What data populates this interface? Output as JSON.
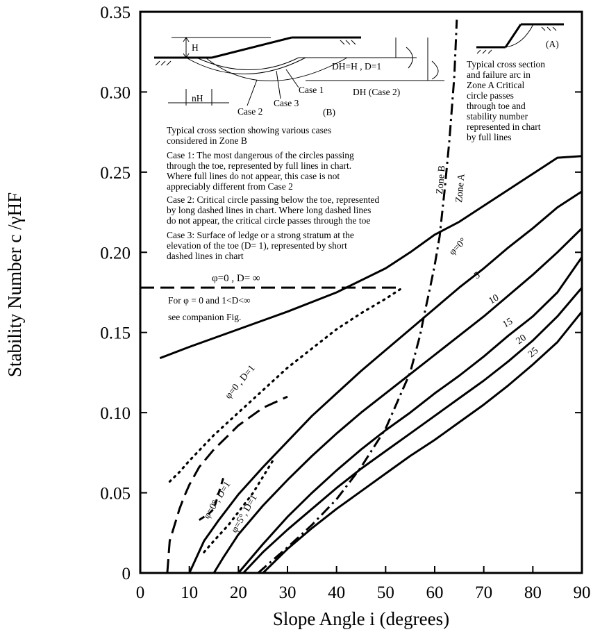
{
  "chart_data": {
    "type": "line",
    "title": "",
    "xlabel": "Slope Angle i (degrees)",
    "ylabel": "Stability Number c /γHF",
    "xlim": [
      0,
      90
    ],
    "ylim": [
      0,
      0.35
    ],
    "x_ticks": [
      "0",
      "10",
      "20",
      "30",
      "40",
      "50",
      "60",
      "70",
      "80",
      "90"
    ],
    "y_ticks": [
      "0",
      "0.05",
      "0.10",
      "0.15",
      "0.20",
      "0.25",
      "0.30",
      "0.35"
    ],
    "grid": false,
    "series": [
      {
        "name": "φ=0°",
        "style": "solid",
        "x": [
          4,
          10,
          20,
          30,
          40,
          50,
          55,
          60,
          65,
          70,
          75,
          80,
          85,
          90
        ],
        "y": [
          0.134,
          0.141,
          0.152,
          0.163,
          0.175,
          0.19,
          0.2,
          0.211,
          0.219,
          0.229,
          0.239,
          0.249,
          0.259,
          0.26
        ]
      },
      {
        "name": "5",
        "style": "solid",
        "x": [
          10,
          13,
          16,
          20,
          25,
          30,
          35,
          40,
          45,
          50,
          55,
          60,
          65,
          70,
          75,
          80,
          85,
          90
        ],
        "y": [
          0,
          0.02,
          0.033,
          0.049,
          0.066,
          0.082,
          0.098,
          0.112,
          0.126,
          0.139,
          0.152,
          0.165,
          0.178,
          0.19,
          0.203,
          0.215,
          0.228,
          0.238
        ]
      },
      {
        "name": "10",
        "style": "solid",
        "x": [
          15,
          17,
          20,
          25,
          30,
          35,
          40,
          45,
          50,
          55,
          60,
          65,
          70,
          75,
          80,
          85,
          90
        ],
        "y": [
          0,
          0.01,
          0.024,
          0.042,
          0.058,
          0.073,
          0.087,
          0.1,
          0.112,
          0.124,
          0.136,
          0.148,
          0.16,
          0.173,
          0.186,
          0.2,
          0.215
        ]
      },
      {
        "name": "15",
        "style": "solid",
        "x": [
          20,
          25,
          30,
          35,
          40,
          45,
          50,
          55,
          60,
          65,
          70,
          75,
          80,
          85,
          90
        ],
        "y": [
          0,
          0.018,
          0.035,
          0.05,
          0.064,
          0.077,
          0.089,
          0.1,
          0.112,
          0.123,
          0.135,
          0.148,
          0.16,
          0.175,
          0.197
        ]
      },
      {
        "name": "20",
        "style": "solid",
        "x": [
          21,
          25,
          30,
          35,
          40,
          45,
          50,
          55,
          60,
          65,
          70,
          75,
          80,
          85,
          90
        ],
        "y": [
          0,
          0.013,
          0.027,
          0.04,
          0.053,
          0.065,
          0.076,
          0.087,
          0.098,
          0.109,
          0.12,
          0.132,
          0.145,
          0.16,
          0.178
        ]
      },
      {
        "name": "25",
        "style": "solid",
        "x": [
          25,
          30,
          35,
          40,
          45,
          50,
          55,
          60,
          65,
          70,
          75,
          80,
          85,
          90
        ],
        "y": [
          0,
          0.015,
          0.028,
          0.04,
          0.051,
          0.062,
          0.073,
          0.083,
          0.094,
          0.105,
          0.117,
          0.13,
          0.144,
          0.163
        ]
      },
      {
        "name": "φ=0 , D=∞",
        "style": "long-dash",
        "x": [
          0,
          53
        ],
        "y": [
          0.178,
          0.178
        ]
      },
      {
        "name": "φ=0 , D=1",
        "style": "dotted",
        "x": [
          6,
          8,
          10,
          15,
          20,
          25,
          30,
          35,
          40,
          45,
          50,
          53
        ],
        "y": [
          0.057,
          0.063,
          0.07,
          0.086,
          0.1,
          0.114,
          0.128,
          0.14,
          0.152,
          0.162,
          0.171,
          0.177
        ]
      },
      {
        "name": "φ=0° , D=1 (short)",
        "style": "short-dash",
        "x": [
          12,
          14,
          15,
          17
        ],
        "y": [
          0.033,
          0.037,
          0.04,
          0.06
        ]
      },
      {
        "name": "φ=5° , D=1",
        "style": "dotted",
        "x": [
          13,
          15,
          18,
          20,
          23,
          27
        ],
        "y": [
          0.013,
          0.02,
          0.03,
          0.038,
          0.05,
          0.07
        ]
      },
      {
        "name": "Case 2 (φ=0°)",
        "style": "long-dash",
        "x": [
          5.5,
          6,
          7,
          8,
          9,
          10,
          12,
          15,
          18,
          20,
          25,
          30
        ],
        "y": [
          0,
          0.02,
          0.03,
          0.04,
          0.048,
          0.055,
          0.066,
          0.077,
          0.086,
          0.092,
          0.103,
          0.11
        ]
      },
      {
        "name": "Zone boundary",
        "style": "dash-dot",
        "x": [
          24,
          30,
          35,
          40,
          45,
          50,
          55,
          57,
          58,
          59,
          60,
          61,
          62,
          63,
          64,
          64.5
        ],
        "y": [
          0,
          0.016,
          0.03,
          0.046,
          0.066,
          0.09,
          0.125,
          0.148,
          0.163,
          0.177,
          0.192,
          0.21,
          0.238,
          0.27,
          0.31,
          0.345
        ]
      }
    ],
    "annotations": {
      "phi0_D_inf": "φ=0 , D= ∞",
      "companion_1": "For  φ = 0  and  1<D<∞",
      "companion_2": "see companion Fig.",
      "lbl_phi0_top": "φ=0°",
      "lbl_5": "5",
      "lbl_10": "10",
      "lbl_15": "15",
      "lbl_20": "20",
      "lbl_25": "25",
      "lbl_phi0_D1": "φ=0 , D=1",
      "lbl_phi0deg_D1": "φ=0°, D=1",
      "lbl_phi5_D1": "φ=5°, D=1",
      "zone_b": "Zone B",
      "zone_a": "Zone A"
    },
    "inset_b": {
      "H": "H",
      "nH": "nH",
      "dh1": "DH=H , D=1",
      "dh2": "DH (Case 2)",
      "case1": "Case 1",
      "case2": "Case 2",
      "case3": "Case 3",
      "tag": "(B)"
    },
    "inset_a": {
      "tag": "(A)",
      "text": [
        "Typical cross section",
        "and failure arc in",
        "Zone A Critical",
        "circle passes",
        "through toe and",
        "stability number",
        "represented in chart",
        "by full lines"
      ]
    },
    "zone_b_text": {
      "heading": [
        "Typical cross section showing various cases",
        "considered in Zone B"
      ],
      "case1": [
        "Case 1: The most dangerous of the circles passing",
        "through the toe, represented by full lines in chart.",
        "Where full lines do not appear, this case is not",
        "appreciably different from Case 2"
      ],
      "case2": [
        "Case 2: Critical circle passing below the toe, represented",
        "by long dashed lines in chart. Where long dashed lines",
        "do not appear, the critical circle passes through the toe"
      ],
      "case3": [
        "Case 3: Surface of ledge or a strong stratum at the",
        "elevation of the toe (D= 1), represented by short",
        "dashed lines in chart"
      ]
    }
  }
}
